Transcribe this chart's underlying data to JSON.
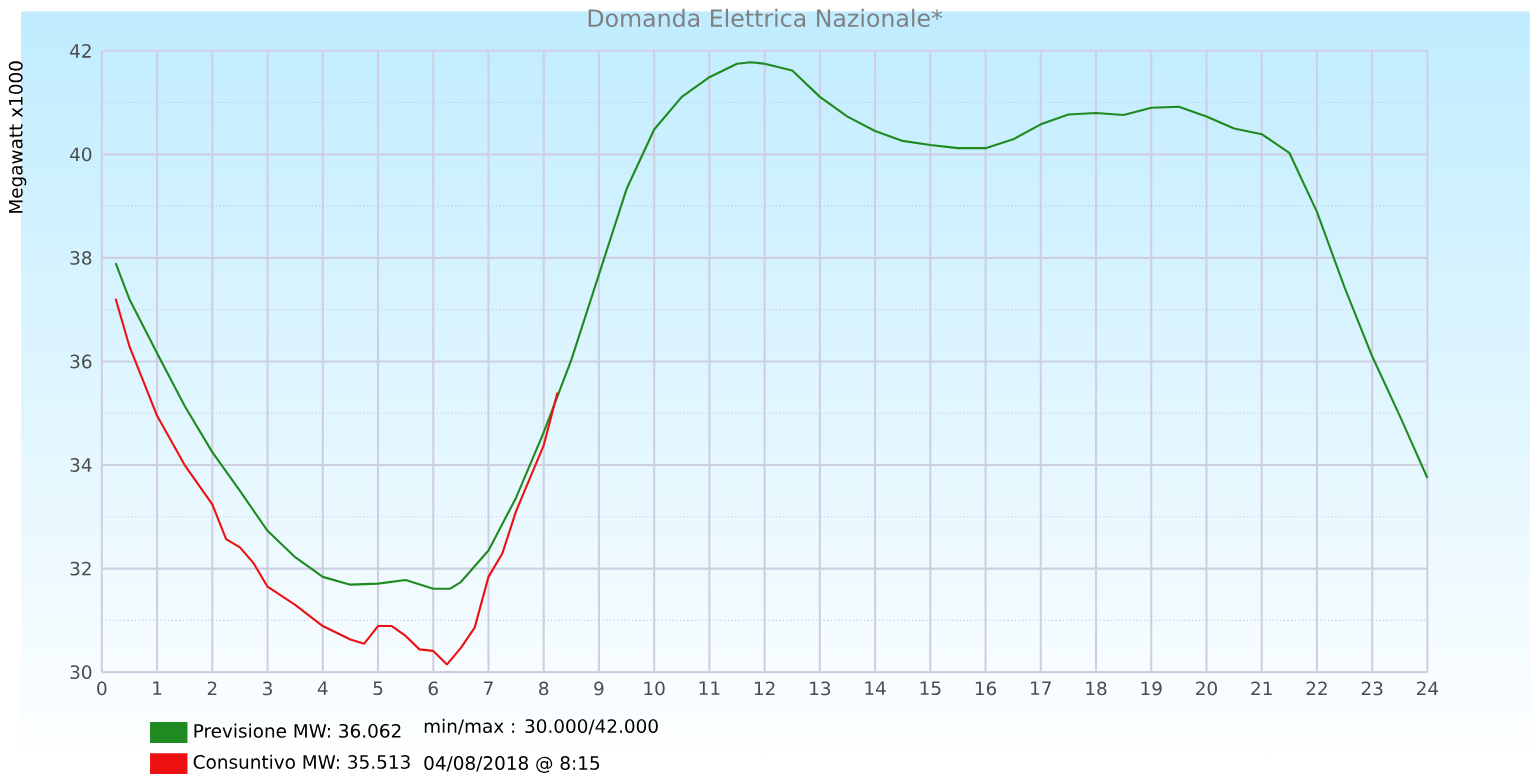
{
  "chart_data": {
    "type": "line",
    "title": "Domanda Elettrica Nazionale*",
    "ylabel": "Megawatt x1000",
    "xlim": [
      0,
      24
    ],
    "xticks": [
      0,
      1,
      2,
      3,
      4,
      5,
      6,
      7,
      8,
      9,
      10,
      11,
      12,
      13,
      14,
      15,
      16,
      17,
      18,
      19,
      20,
      21,
      22,
      23,
      24
    ],
    "ylim": [
      30,
      42
    ],
    "yticks": [
      30,
      32,
      34,
      36,
      38,
      40,
      42
    ],
    "grid": true,
    "legend": "bottom left",
    "marker": "none",
    "line_style": "solid",
    "annotations": [
      "min/max : 30.000/42.000",
      "04/08/2018 @ 8:15"
    ],
    "series": [
      {
        "name": "Previsione MW: 36.062",
        "color": "#1f8a1f",
        "x": [
          0.25,
          0.5,
          1,
          1.5,
          2,
          2.5,
          3,
          3.5,
          4,
          4.5,
          5,
          5.5,
          6,
          6.3,
          6.5,
          7,
          7.5,
          8,
          8.5,
          9,
          9.5,
          10,
          10.5,
          11,
          11.5,
          11.75,
          12,
          12.5,
          13,
          13.5,
          14,
          14.5,
          15,
          15.5,
          16,
          16.5,
          17,
          17.5,
          18,
          18.5,
          19,
          19.5,
          20,
          20.5,
          21,
          21.5,
          22,
          22.5,
          23,
          23.5,
          24
        ],
        "values": [
          37.9,
          37.2,
          36.16,
          35.14,
          34.25,
          33.5,
          32.73,
          32.22,
          31.84,
          31.69,
          31.71,
          31.78,
          31.61,
          31.61,
          31.74,
          32.35,
          33.37,
          34.63,
          36.03,
          37.68,
          39.33,
          40.48,
          41.11,
          41.49,
          41.75,
          41.78,
          41.75,
          41.62,
          41.11,
          40.73,
          40.45,
          40.26,
          40.18,
          40.12,
          40.12,
          40.29,
          40.58,
          40.77,
          40.8,
          40.76,
          40.9,
          40.92,
          40.73,
          40.5,
          40.39,
          40.03,
          38.89,
          37.43,
          36.1,
          34.95,
          33.75
        ]
      },
      {
        "name": "Consuntivo MW: 35.513",
        "color": "#ee1111",
        "x": [
          0.25,
          0.5,
          1,
          1.5,
          2,
          2.25,
          2.5,
          2.75,
          3,
          3.5,
          4,
          4.5,
          4.75,
          5,
          5.25,
          5.5,
          5.75,
          6,
          6.25,
          6.5,
          6.75,
          7,
          7.25,
          7.5,
          8,
          8.25
        ],
        "values": [
          37.21,
          36.29,
          34.95,
          34.0,
          33.24,
          32.57,
          32.41,
          32.1,
          31.65,
          31.3,
          30.89,
          30.63,
          30.55,
          30.89,
          30.89,
          30.7,
          30.44,
          30.41,
          30.15,
          30.47,
          30.86,
          31.84,
          32.29,
          33.11,
          34.38,
          35.4
        ]
      }
    ]
  }
}
